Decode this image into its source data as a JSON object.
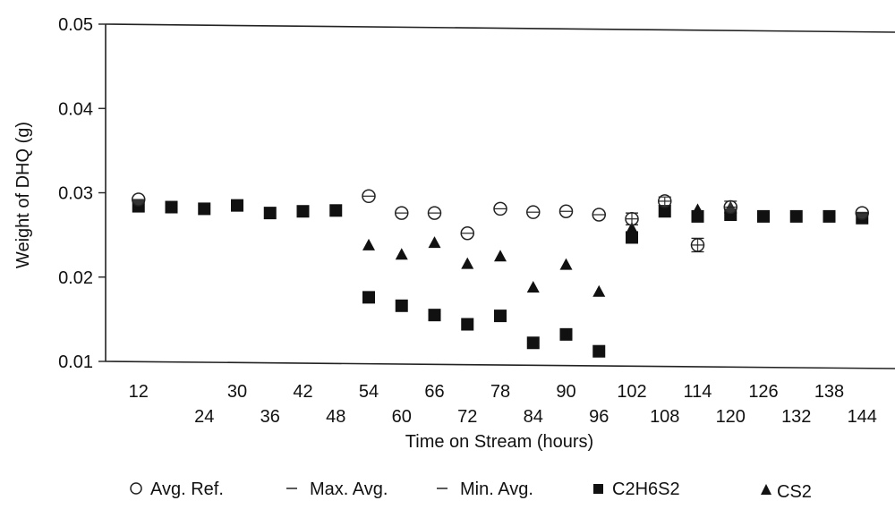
{
  "chart_data": {
    "type": "scatter",
    "title": "",
    "xlabel": "Time on Stream (hours)",
    "ylabel": "Weight of DHQ (g)",
    "ylim": [
      0.01,
      0.05
    ],
    "xlim": [
      6,
      150
    ],
    "grid": false,
    "legend_position": "bottom",
    "y_ticks": [
      "0.01",
      "0.02",
      "0.03",
      "0.04",
      "0.05"
    ],
    "x_ticks": [
      "12",
      "24",
      "30",
      "36",
      "42",
      "48",
      "54",
      "60",
      "66",
      "72",
      "78",
      "84",
      "90",
      "96",
      "102",
      "108",
      "114",
      "120",
      "126",
      "132",
      "138",
      "144"
    ],
    "legend": [
      {
        "label": "Avg. Ref.",
        "marker": "open-circle"
      },
      {
        "label": "Max. Avg.",
        "marker": "dash"
      },
      {
        "label": "Min. Avg.",
        "marker": "dash"
      },
      {
        "label": "C2H6S2",
        "marker": "filled-square"
      },
      {
        "label": "CS2",
        "marker": "filled-triangle"
      }
    ],
    "series": [
      {
        "name": "Avg. Ref.",
        "marker": "open-circle",
        "x": [
          12,
          54,
          60,
          66,
          72,
          78,
          84,
          90,
          96,
          102,
          108,
          114,
          120,
          144
        ],
        "y": [
          0.0292,
          0.0296,
          0.0276,
          0.0276,
          0.0252,
          0.0281,
          0.0277,
          0.0278,
          0.0274,
          0.0269,
          0.029,
          0.0238,
          0.0283,
          0.0276
        ]
      },
      {
        "name": "Max. Avg.",
        "marker": "dash",
        "x": [
          102,
          108,
          114,
          120
        ],
        "y": [
          0.0276,
          0.0295,
          0.0246,
          0.029
        ]
      },
      {
        "name": "Min. Avg.",
        "marker": "dash",
        "x": [
          102,
          108,
          114,
          120
        ],
        "y": [
          0.0262,
          0.0285,
          0.023,
          0.0276
        ]
      },
      {
        "name": "C2H6S2",
        "marker": "filled-square",
        "x": [
          12,
          18,
          24,
          30,
          36,
          42,
          48,
          54,
          60,
          66,
          72,
          78,
          84,
          90,
          96,
          102,
          108,
          114,
          120,
          126,
          132,
          138,
          144
        ],
        "y": [
          0.0284,
          0.0283,
          0.0281,
          0.0285,
          0.0276,
          0.0278,
          0.0279,
          0.0176,
          0.0166,
          0.0155,
          0.0144,
          0.0154,
          0.0122,
          0.0132,
          0.0112,
          0.0247,
          0.0278,
          0.0272,
          0.0274,
          0.0272,
          0.0272,
          0.0272,
          0.027
        ]
      },
      {
        "name": "CS2",
        "marker": "filled-triangle",
        "x": [
          54,
          60,
          66,
          72,
          78,
          84,
          90,
          96,
          102,
          114,
          120
        ],
        "y": [
          0.0238,
          0.0227,
          0.0241,
          0.0216,
          0.0225,
          0.0188,
          0.0215,
          0.0183,
          0.0258,
          0.028,
          0.0283
        ]
      }
    ]
  }
}
